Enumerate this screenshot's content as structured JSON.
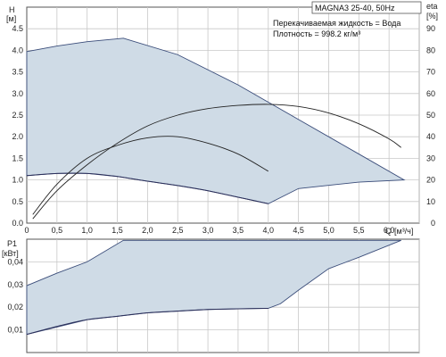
{
  "chart_data": [
    {
      "type": "line",
      "name": "head",
      "y_title": "H",
      "y_unit": "[м]",
      "y2_title": "eta",
      "y2_unit": "[%]",
      "x_title": "Q",
      "x_unit": "[м³/ч]",
      "xlim": [
        0,
        6.5
      ],
      "ylim": [
        0,
        5.0
      ],
      "y2lim": [
        0,
        100
      ],
      "x_ticks": [
        "0",
        "0,5",
        "1,0",
        "1,5",
        "2,0",
        "2,5",
        "3,0",
        "3,5",
        "4,0",
        "4,5",
        "5,0",
        "5,5",
        "6,0"
      ],
      "x_tick_values": [
        0,
        0.5,
        1.0,
        1.5,
        2.0,
        2.5,
        3.0,
        3.5,
        4.0,
        4.5,
        5.0,
        5.5,
        6.0
      ],
      "y_ticks": [
        "0.0",
        "0.5",
        "1.0",
        "1.5",
        "2.0",
        "2.5",
        "3.0",
        "3.5",
        "4.0",
        "4.5"
      ],
      "y_tick_values": [
        0,
        0.5,
        1.0,
        1.5,
        2.0,
        2.5,
        3.0,
        3.5,
        4.0,
        4.5
      ],
      "y2_ticks": [
        "0",
        "10",
        "20",
        "30",
        "40",
        "50",
        "60",
        "70",
        "80",
        "90"
      ],
      "y2_tick_values": [
        0,
        10,
        20,
        30,
        40,
        50,
        60,
        70,
        80,
        90
      ],
      "grid": true,
      "model": "MAGNA3 25-40, 50Hz",
      "notes": [
        "Перекачиваемая жидкость = Вода",
        "Плотность = 998.2 кг/м³"
      ],
      "envelope": [
        [
          0,
          3.97
        ],
        [
          0.5,
          4.1
        ],
        [
          1.0,
          4.2
        ],
        [
          1.6,
          4.28
        ],
        [
          2.5,
          3.9
        ],
        [
          3.5,
          3.2
        ],
        [
          4.5,
          2.4
        ],
        [
          5.5,
          1.6
        ],
        [
          6.25,
          1.0
        ],
        [
          5.5,
          0.95
        ],
        [
          4.5,
          0.8
        ],
        [
          4.0,
          0.45
        ],
        [
          3.5,
          0.6
        ],
        [
          3.0,
          0.75
        ],
        [
          2.5,
          0.87
        ],
        [
          2.0,
          0.97
        ],
        [
          1.5,
          1.08
        ],
        [
          1.0,
          1.15
        ],
        [
          0.5,
          1.15
        ],
        [
          0,
          1.1
        ]
      ],
      "series": [
        {
          "role": "head_min",
          "axis": "left",
          "x": [
            0,
            0.5,
            1.0,
            1.5,
            2.0,
            2.5,
            3.0,
            3.5,
            4.0
          ],
          "y": [
            1.1,
            1.15,
            1.15,
            1.08,
            0.97,
            0.87,
            0.75,
            0.6,
            0.45
          ]
        },
        {
          "role": "eta_max",
          "axis": "right",
          "x": [
            0.1,
            0.5,
            1.0,
            1.5,
            2.0,
            2.5,
            3.0,
            3.5,
            4.0,
            4.5,
            5.0,
            5.5,
            6.0,
            6.2
          ],
          "y": [
            2,
            15,
            27,
            37,
            45,
            50,
            53,
            54.5,
            55,
            54,
            51,
            46,
            39,
            35
          ]
        },
        {
          "role": "eta_mid",
          "axis": "right",
          "x": [
            0.1,
            0.5,
            1.0,
            1.5,
            2.0,
            2.5,
            3.0,
            3.5,
            4.0
          ],
          "y": [
            4,
            18,
            30,
            36,
            39.5,
            40,
            37,
            32,
            24
          ]
        }
      ]
    },
    {
      "type": "area",
      "name": "power",
      "y_title": "P1",
      "y_unit": "[кВт]",
      "xlim": [
        0,
        6.5
      ],
      "ylim": [
        0,
        0.05
      ],
      "y_ticks": [
        "0,01",
        "0,02",
        "0,03",
        "0,04"
      ],
      "y_tick_values": [
        0.01,
        0.02,
        0.03,
        0.04
      ],
      "grid": true,
      "envelope": [
        [
          0,
          0.0295
        ],
        [
          0.5,
          0.035
        ],
        [
          1.0,
          0.04
        ],
        [
          1.6,
          0.0495
        ],
        [
          3.0,
          0.0495
        ],
        [
          4.0,
          0.0495
        ],
        [
          5.0,
          0.0495
        ],
        [
          6.2,
          0.0495
        ],
        [
          5.5,
          0.042
        ],
        [
          5.0,
          0.037
        ],
        [
          4.5,
          0.0275
        ],
        [
          4.2,
          0.0215
        ],
        [
          4.0,
          0.0195
        ],
        [
          3.0,
          0.019
        ],
        [
          2.0,
          0.0175
        ],
        [
          1.0,
          0.0145
        ],
        [
          0,
          0.008
        ]
      ],
      "series": [
        {
          "role": "power_min",
          "x": [
            0,
            0.5,
            1.0,
            1.5,
            2.0,
            2.5,
            3.0,
            3.5,
            4.0
          ],
          "y": [
            0.008,
            0.0115,
            0.0145,
            0.016,
            0.0175,
            0.0183,
            0.019,
            0.0193,
            0.0195
          ]
        }
      ]
    }
  ]
}
